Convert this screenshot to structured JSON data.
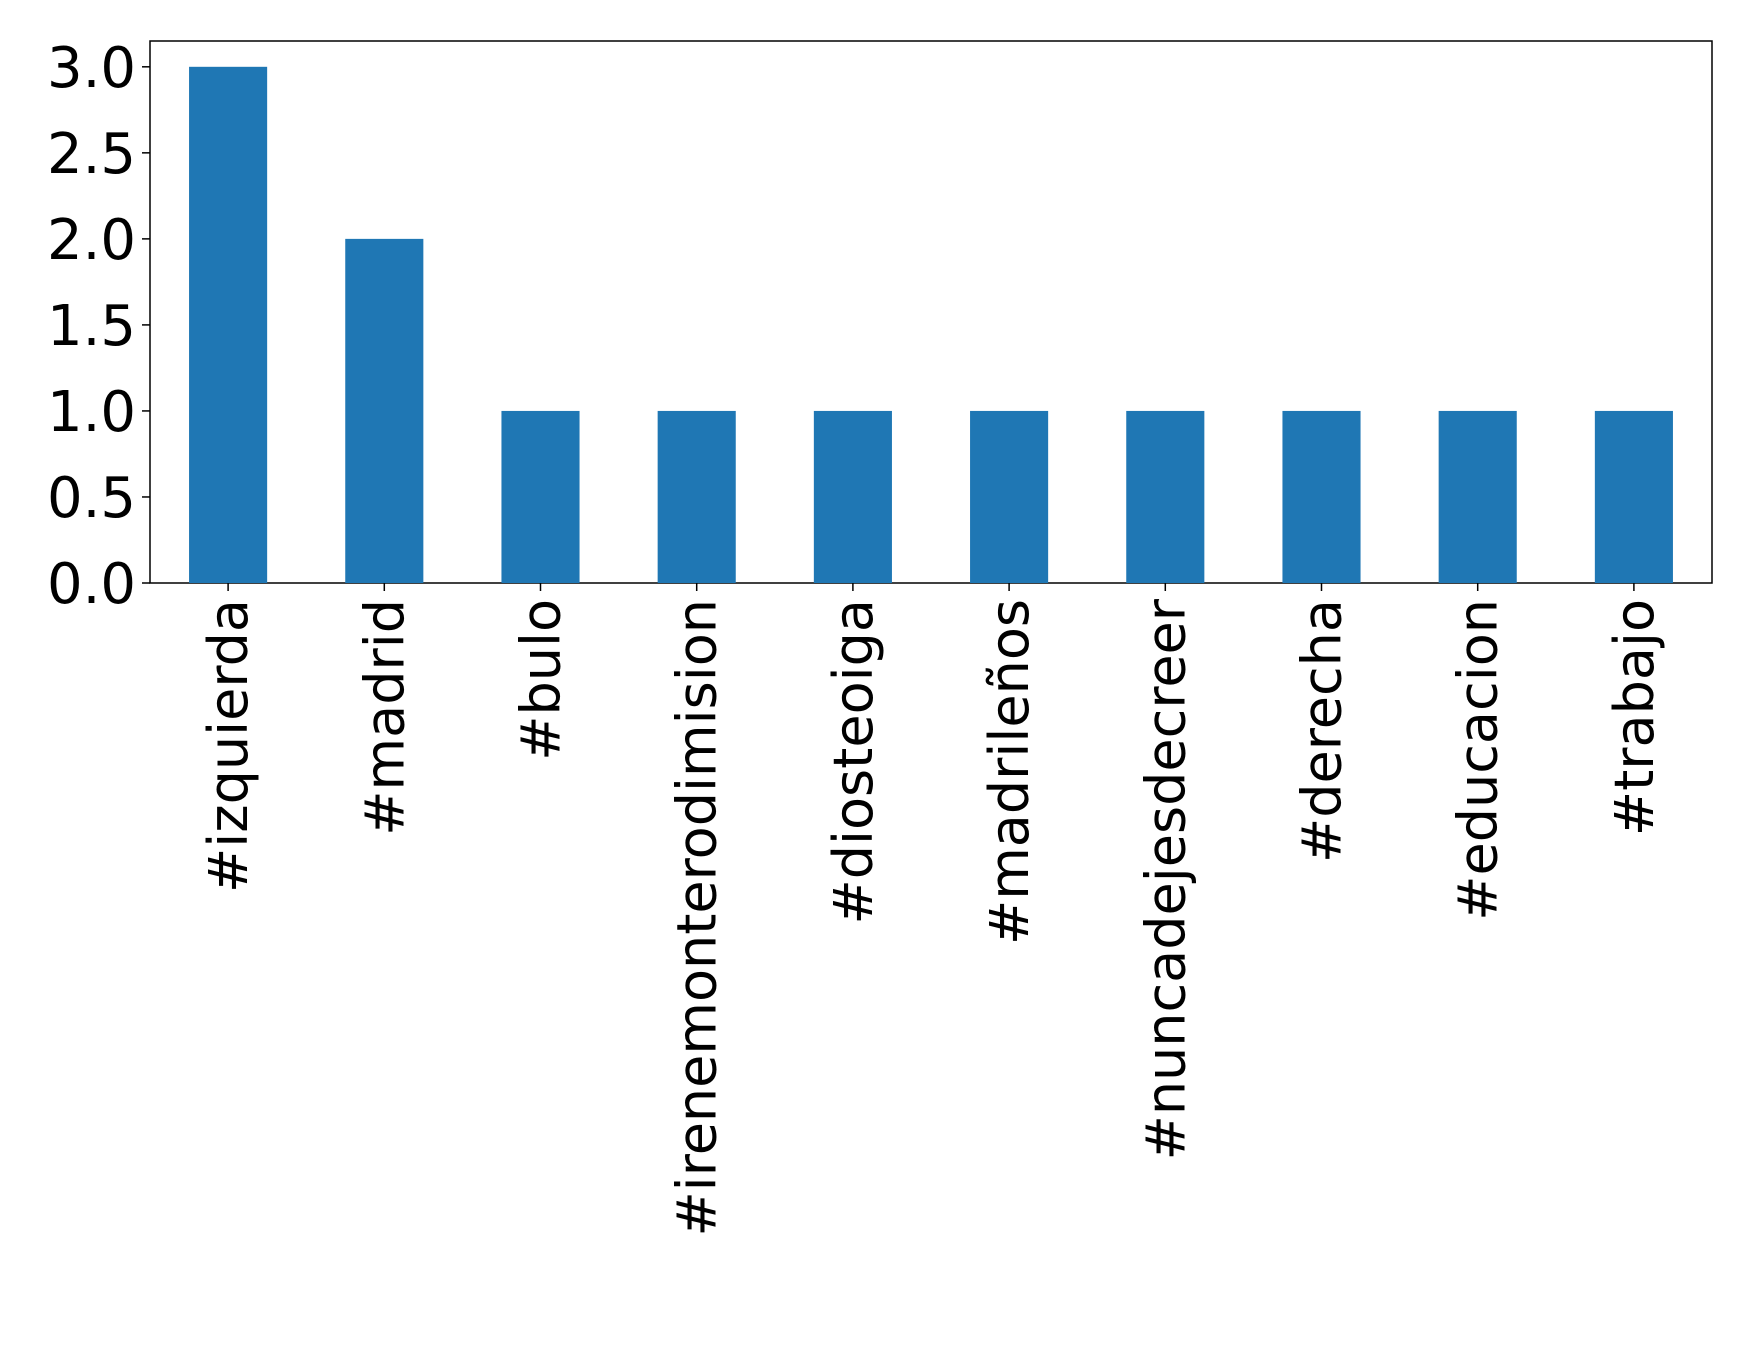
{
  "chart_data": {
    "type": "bar",
    "categories": [
      "#izquierda",
      "#madrid",
      "#bulo",
      "#irenemonterodimision",
      "#diosteoiga",
      "#madrileños",
      "#nuncadejesdecreer",
      "#derecha",
      "#educacion",
      "#trabajo"
    ],
    "values": [
      3,
      2,
      1,
      1,
      1,
      1,
      1,
      1,
      1,
      1
    ],
    "color": "#1f77b4",
    "ylim": [
      0,
      3.15
    ],
    "yticks": [
      {
        "value": 0,
        "label": "0.0"
      },
      {
        "value": 0.5,
        "label": "0.5"
      },
      {
        "value": 1,
        "label": "1.0"
      },
      {
        "value": 1.5,
        "label": "1.5"
      },
      {
        "value": 2,
        "label": "2.0"
      },
      {
        "value": 2.5,
        "label": "2.5"
      },
      {
        "value": 3,
        "label": "3.0"
      }
    ],
    "grid": false
  }
}
